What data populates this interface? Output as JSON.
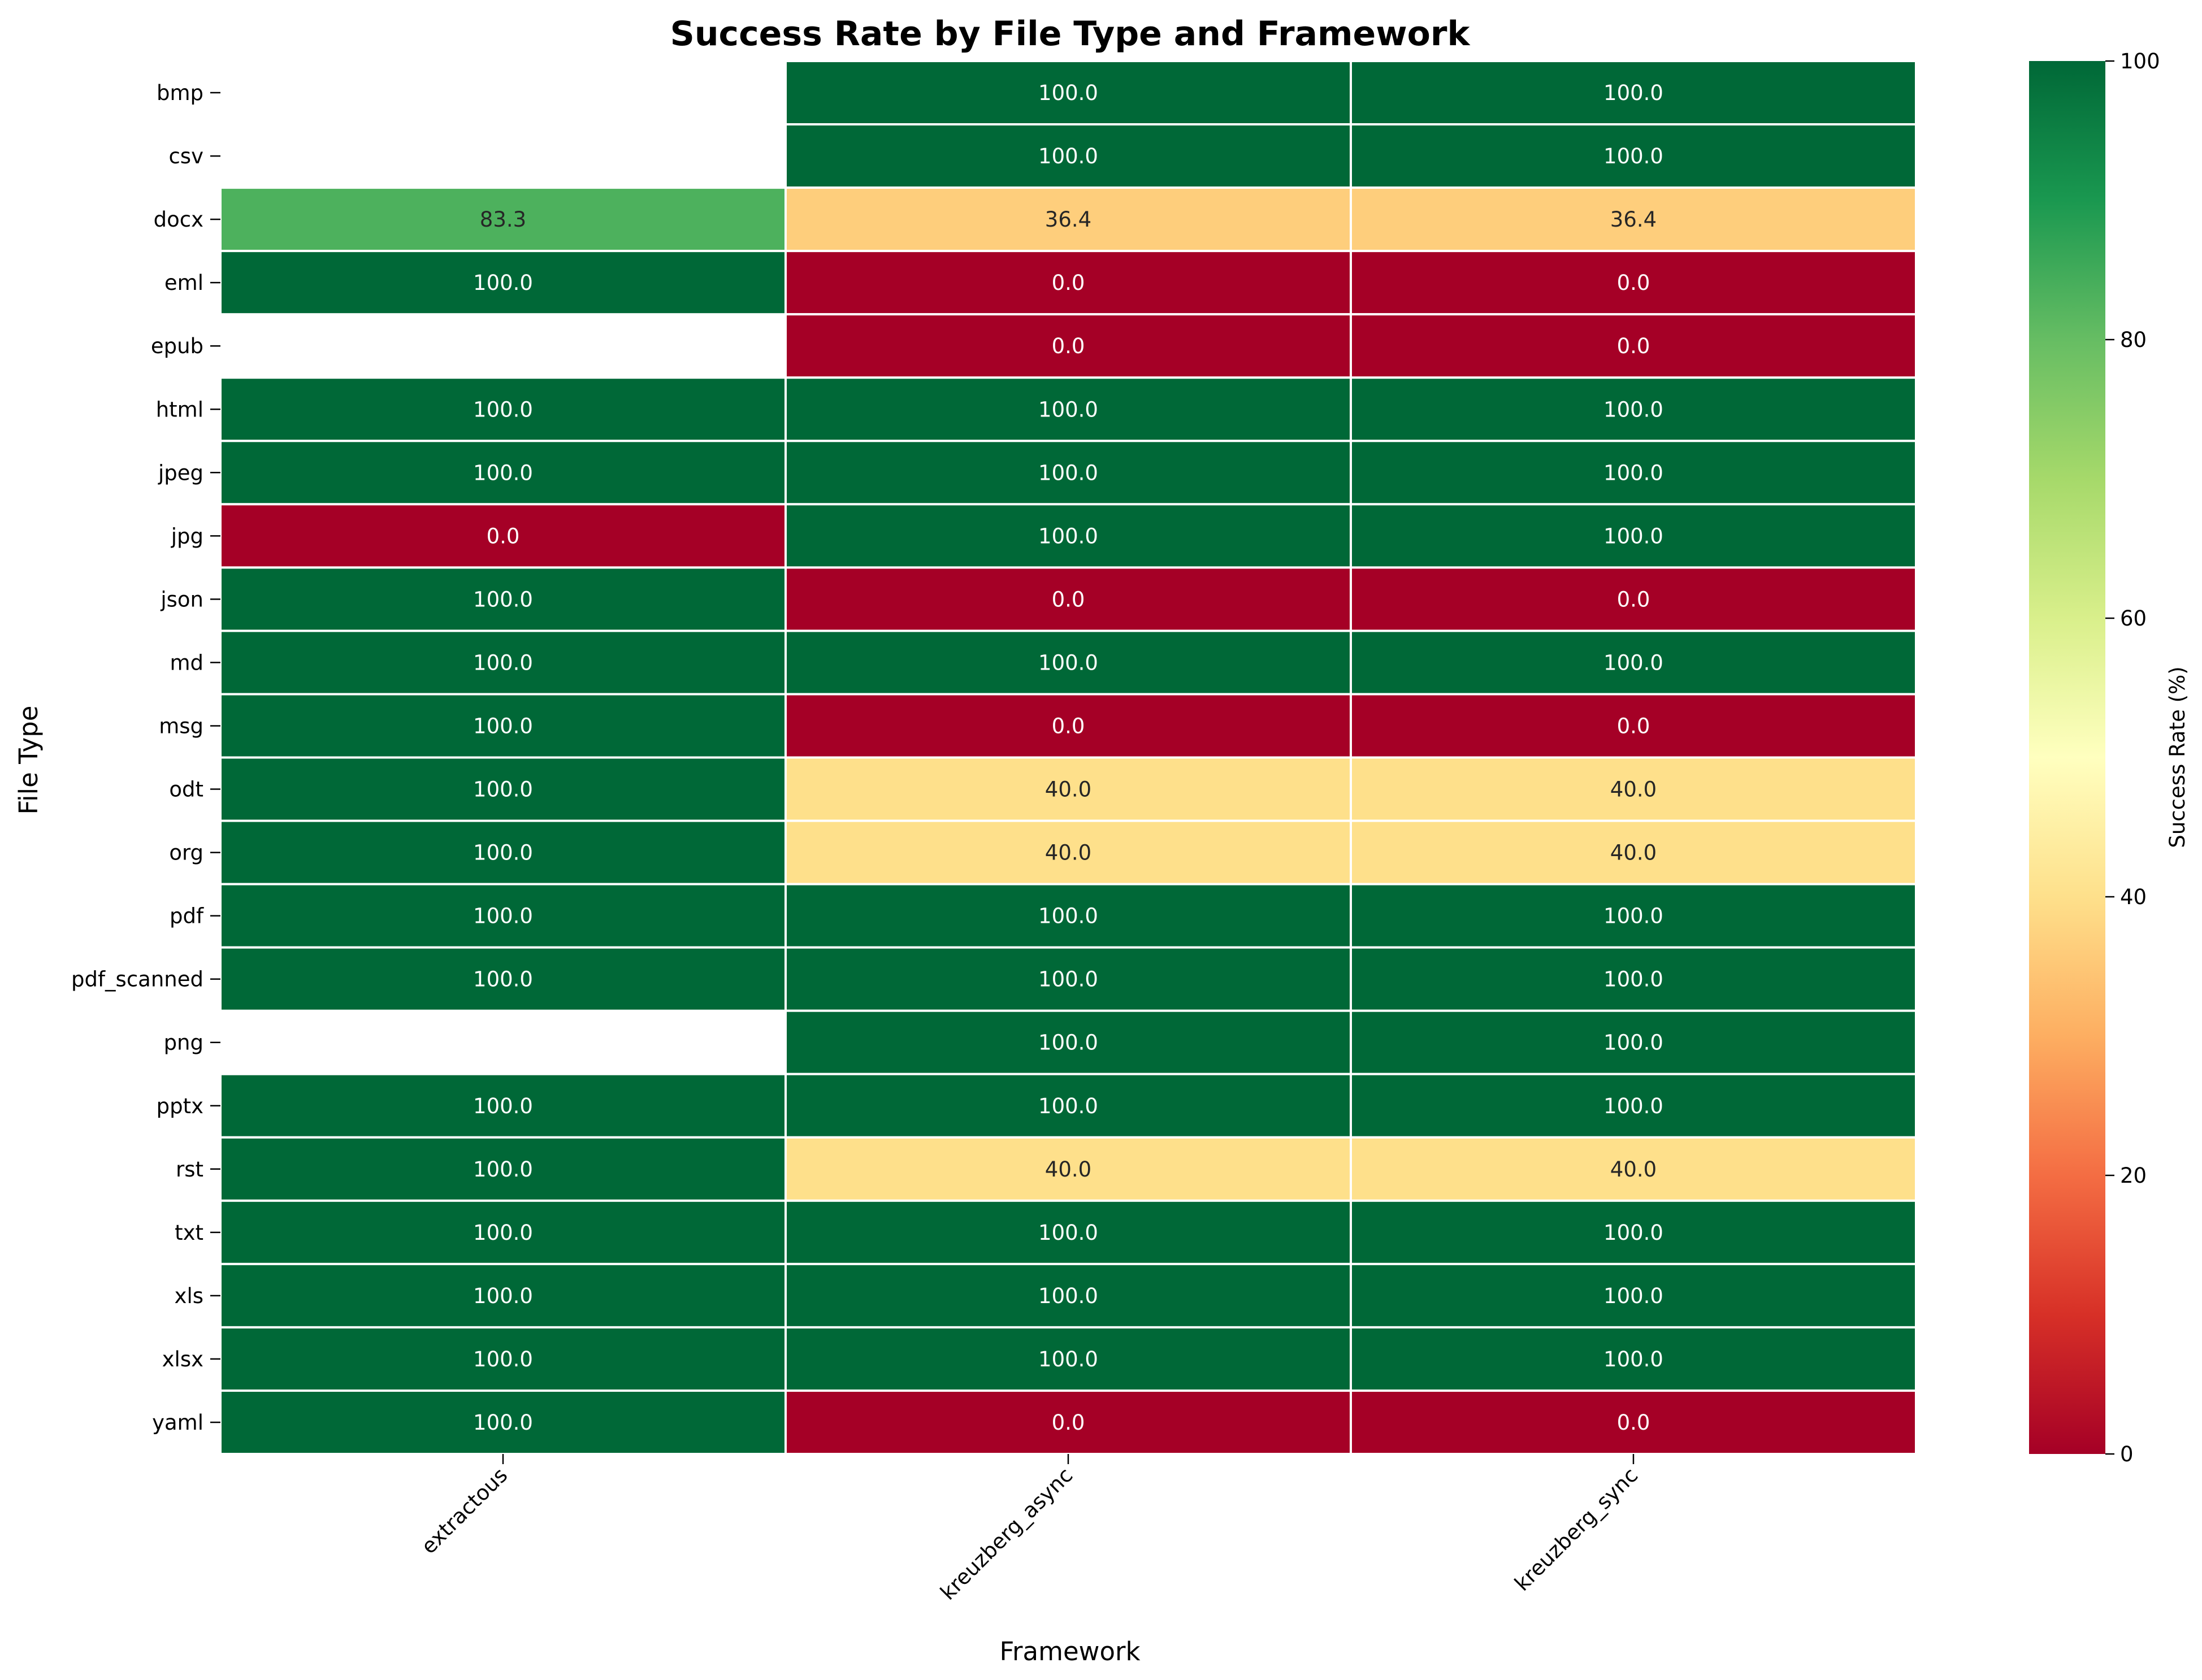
{
  "chart_data": {
    "type": "heatmap",
    "title": "Success Rate by File Type and Framework",
    "xlabel": "Framework",
    "ylabel": "File Type",
    "colorbar_label": "Success Rate (%)",
    "colorbar_ticks": [
      0,
      20,
      40,
      60,
      80,
      100
    ],
    "colormap": "RdYlGn",
    "vmin": 0,
    "vmax": 100,
    "grid": false,
    "frameworks": [
      "extractous",
      "kreuzberg_async",
      "kreuzberg_sync"
    ],
    "file_types": [
      "bmp",
      "csv",
      "docx",
      "eml",
      "epub",
      "html",
      "jpeg",
      "jpg",
      "json",
      "md",
      "msg",
      "odt",
      "org",
      "pdf",
      "pdf_scanned",
      "png",
      "pptx",
      "rst",
      "txt",
      "xls",
      "xlsx",
      "yaml"
    ],
    "values": [
      [
        null,
        100.0,
        100.0
      ],
      [
        null,
        100.0,
        100.0
      ],
      [
        83.3,
        36.4,
        36.4
      ],
      [
        100.0,
        0.0,
        0.0
      ],
      [
        null,
        0.0,
        0.0
      ],
      [
        100.0,
        100.0,
        100.0
      ],
      [
        100.0,
        100.0,
        100.0
      ],
      [
        0.0,
        100.0,
        100.0
      ],
      [
        100.0,
        0.0,
        0.0
      ],
      [
        100.0,
        100.0,
        100.0
      ],
      [
        100.0,
        0.0,
        0.0
      ],
      [
        100.0,
        40.0,
        40.0
      ],
      [
        100.0,
        40.0,
        40.0
      ],
      [
        100.0,
        100.0,
        100.0
      ],
      [
        100.0,
        100.0,
        100.0
      ],
      [
        null,
        100.0,
        100.0
      ],
      [
        100.0,
        100.0,
        100.0
      ],
      [
        100.0,
        40.0,
        40.0
      ],
      [
        100.0,
        100.0,
        100.0
      ],
      [
        100.0,
        100.0,
        100.0
      ],
      [
        100.0,
        100.0,
        100.0
      ],
      [
        100.0,
        0.0,
        0.0
      ]
    ]
  }
}
